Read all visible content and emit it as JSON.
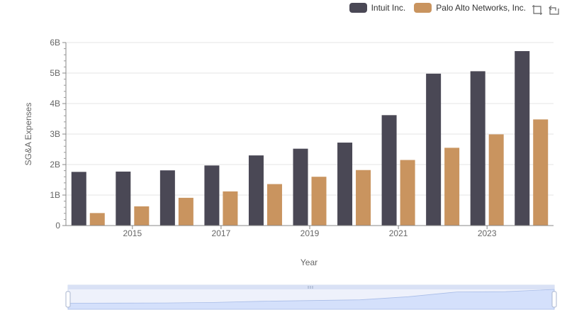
{
  "chart_data": {
    "type": "bar",
    "x": [
      2014,
      2015,
      2016,
      2017,
      2018,
      2019,
      2020,
      2021,
      2022,
      2023,
      2024
    ],
    "x_tick_labels": [
      "2015",
      "2017",
      "2019",
      "2021",
      "2023"
    ],
    "series": [
      {
        "name": "Intuit Inc.",
        "color": "#4a4855",
        "values": [
          1.76,
          1.77,
          1.81,
          1.97,
          2.3,
          2.52,
          2.72,
          3.62,
          4.98,
          5.06,
          5.72
        ]
      },
      {
        "name": "Palo Alto Networks, Inc.",
        "color": "#c9945f",
        "values": [
          0.41,
          0.63,
          0.91,
          1.12,
          1.36,
          1.6,
          1.82,
          2.15,
          2.55,
          2.99,
          3.48
        ]
      }
    ],
    "y_tick_labels": [
      "0",
      "1B",
      "2B",
      "3B",
      "4B",
      "5B",
      "6B"
    ],
    "ylim": [
      0,
      6
    ],
    "xlabel": "Year",
    "ylabel": "SG&A Expenses",
    "legend_position": "top-right",
    "grid": true
  },
  "toolbox": {
    "zoom_icon": "zoom-icon",
    "restore_icon": "restore-icon"
  }
}
